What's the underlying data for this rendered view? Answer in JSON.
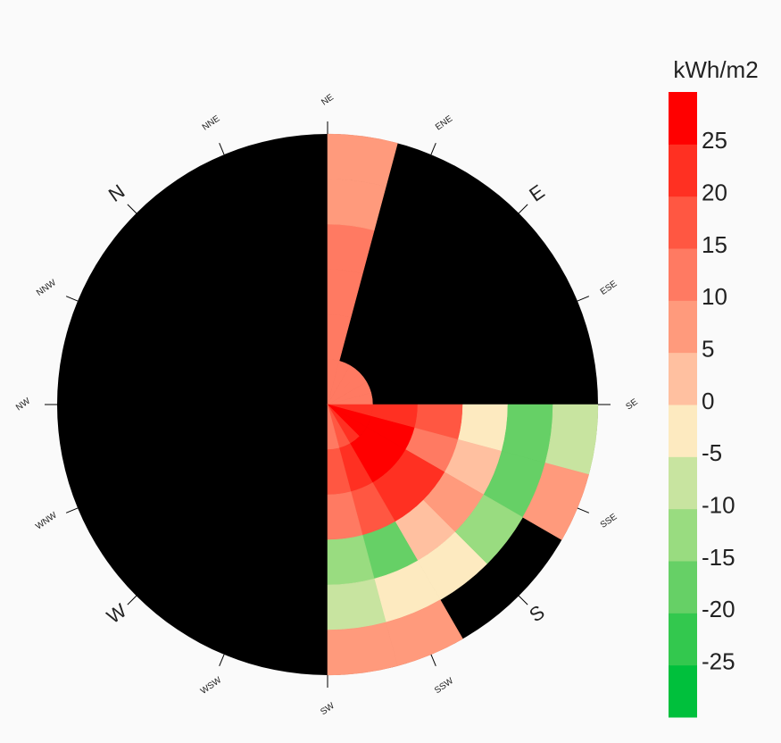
{
  "chart_data": {
    "type": "polar_heatmap",
    "north_angle": -45,
    "compass_labels": [
      "N",
      "NNE",
      "NE",
      "ENE",
      "E",
      "ESE",
      "SE",
      "SSE",
      "S",
      "SSW",
      "SW",
      "WSW",
      "W",
      "WNW",
      "NW",
      "NNW"
    ],
    "azimuth_bins": [
      45,
      60,
      75,
      90,
      105,
      120,
      135,
      150,
      165,
      180,
      195,
      210,
      225
    ],
    "altitude_bins": [
      90,
      75,
      60,
      45,
      30,
      15,
      0
    ],
    "values": [
      [
        10,
        10,
        10,
        10,
        10,
        10,
        20,
        25,
        25,
        20,
        15,
        10
      ],
      [
        10,
        null,
        null,
        null,
        null,
        null,
        20,
        25,
        25,
        25,
        20,
        15
      ],
      [
        10,
        null,
        null,
        null,
        null,
        null,
        15,
        10,
        20,
        20,
        15,
        10
      ],
      [
        10,
        null,
        null,
        null,
        null,
        null,
        -5,
        0,
        5,
        0,
        -20,
        -15
      ],
      [
        5,
        null,
        null,
        null,
        null,
        null,
        -20,
        -20,
        -15,
        -5,
        -5,
        -10
      ],
      [
        5,
        null,
        null,
        null,
        null,
        null,
        -10,
        5,
        null,
        null,
        5,
        5
      ]
    ],
    "colorbar": {
      "title": "kWh/m2",
      "bins": [
        -30,
        -25,
        -20,
        -15,
        -10,
        -5,
        0,
        5,
        10,
        15,
        20,
        25,
        30
      ],
      "colors": [
        "#00c03c",
        "#33c84e",
        "#66d066",
        "#99dc80",
        "#c8e4a0",
        "#fdeac0",
        "#ffc0a0",
        "#ff9a7c",
        "#ff7a62",
        "#ff5742",
        "#ff3022",
        "#ff0000"
      ],
      "ticks": [
        -25,
        -20,
        -15,
        -10,
        -5,
        0,
        5,
        10,
        15,
        20,
        25
      ]
    }
  }
}
